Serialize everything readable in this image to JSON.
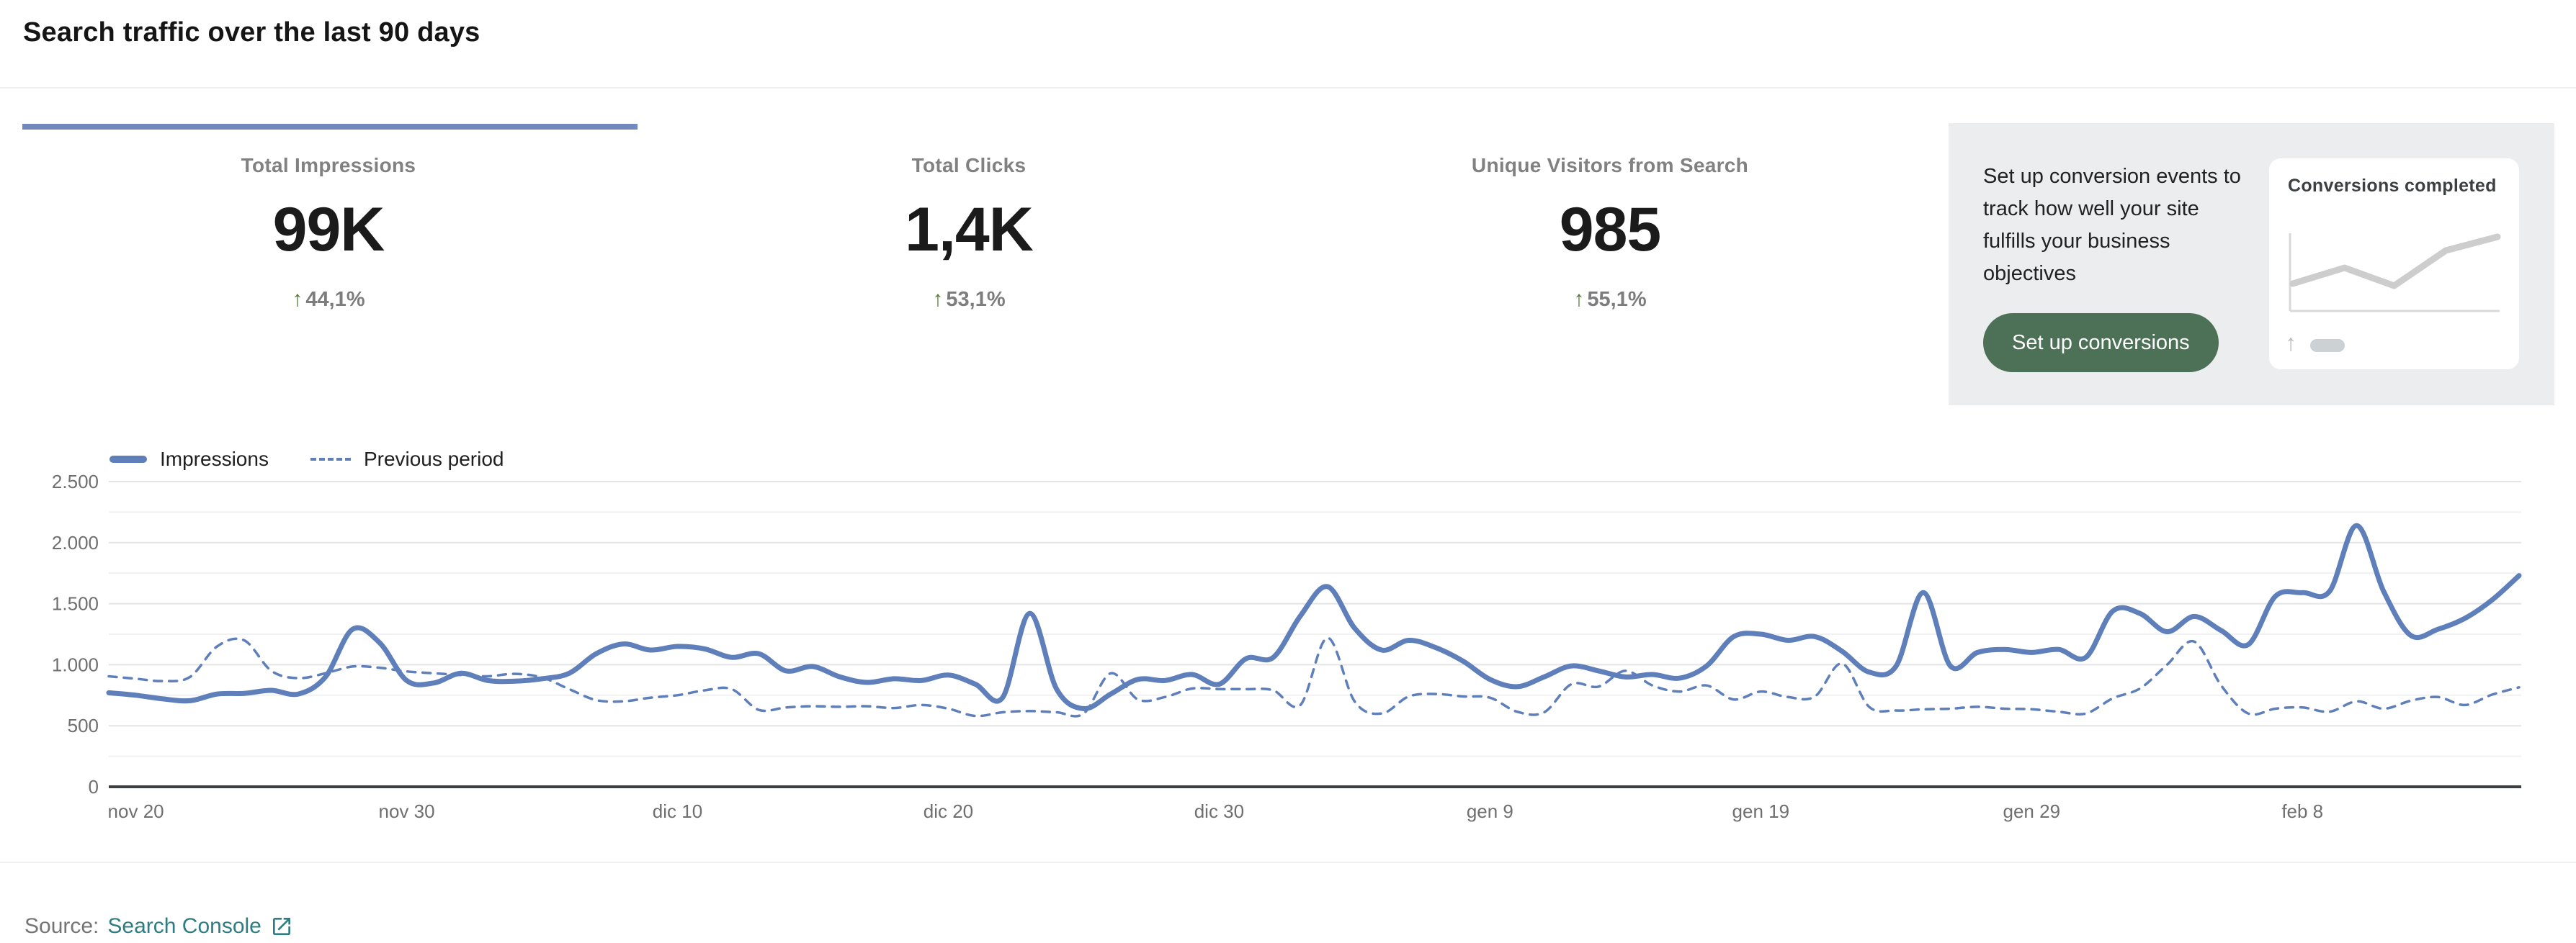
{
  "header": {
    "title": "Search traffic over the last 90 days"
  },
  "colors": {
    "accent_bar": "#7289bb",
    "line_blue": "#5e7fba",
    "delta_green": "#4e7d33",
    "panel_bg": "#ebedee",
    "button_green": "#4d7157",
    "link_teal": "#2e7e81",
    "grid_major": "#e4e4e4",
    "grid_minor": "#f1f1f1",
    "axis_dark": "#3b3e42",
    "mini_line_gray": "#cdcdcd"
  },
  "metrics": [
    {
      "label": "Total Impressions",
      "value": "99K",
      "arrow": "↑",
      "delta": "44,1%",
      "direction": "up"
    },
    {
      "label": "Total Clicks",
      "value": "1,4K",
      "arrow": "↑",
      "delta": "53,1%",
      "direction": "up"
    },
    {
      "label": "Unique Visitors from Search",
      "value": "985",
      "arrow": "↑",
      "delta": "55,1%",
      "direction": "up"
    }
  ],
  "promo": {
    "text": "Set up conversion events to track how well your site fulfills your business objectives",
    "button_label": "Set up conversions",
    "card_title": "Conversions completed",
    "placeholder_arrow": "↑",
    "mini_chart": {
      "points": [
        [
          0.01,
          0.7
        ],
        [
          0.26,
          0.48
        ],
        [
          0.5,
          0.73
        ],
        [
          0.75,
          0.24
        ],
        [
          1.0,
          0.05
        ]
      ]
    }
  },
  "chart_data": {
    "type": "line",
    "title": "Search traffic over the last 90 days",
    "xlabel": "",
    "ylabel": "",
    "ylim": [
      0,
      2500
    ],
    "grid": true,
    "grid_minor_step": 250,
    "grid_major_step": 500,
    "legend_position": "top-left",
    "y_ticks": [
      0,
      500,
      1000,
      1500,
      2000,
      2500
    ],
    "y_tick_labels": [
      "0",
      "500",
      "1.000",
      "1.500",
      "2.000",
      "2.500"
    ],
    "x_tick_labels": [
      "nov 20",
      "nov 30",
      "dic 10",
      "dic 20",
      "dic 30",
      "gen 9",
      "gen 19",
      "gen 29",
      "feb 8"
    ],
    "x_tick_indices": [
      1,
      11,
      21,
      31,
      41,
      51,
      61,
      71,
      81
    ],
    "legend": [
      {
        "name": "Impressions",
        "style": "solid"
      },
      {
        "name": "Previous period",
        "style": "dashed"
      }
    ],
    "series": [
      {
        "name": "Impressions",
        "values": [
          770,
          750,
          720,
          705,
          760,
          765,
          790,
          760,
          900,
          1290,
          1180,
          870,
          850,
          930,
          870,
          865,
          885,
          930,
          1090,
          1170,
          1120,
          1150,
          1130,
          1060,
          1090,
          950,
          985,
          900,
          855,
          885,
          870,
          915,
          840,
          730,
          1420,
          800,
          640,
          760,
          880,
          870,
          920,
          840,
          1050,
          1060,
          1400,
          1640,
          1300,
          1120,
          1200,
          1140,
          1030,
          880,
          820,
          900,
          990,
          950,
          900,
          920,
          890,
          990,
          1230,
          1250,
          1200,
          1230,
          1110,
          940,
          990,
          1590,
          990,
          1100,
          1125,
          1100,
          1125,
          1060,
          1440,
          1420,
          1270,
          1395,
          1280,
          1165,
          1560,
          1590,
          1600,
          2140,
          1600,
          1240,
          1290,
          1380,
          1530,
          1730
        ]
      },
      {
        "name": "Previous period",
        "values": [
          905,
          885,
          866,
          900,
          1150,
          1200,
          950,
          890,
          930,
          985,
          975,
          945,
          930,
          915,
          905,
          925,
          895,
          800,
          710,
          700,
          730,
          750,
          790,
          800,
          630,
          650,
          660,
          655,
          660,
          645,
          670,
          640,
          580,
          610,
          620,
          610,
          600,
          930,
          715,
          735,
          805,
          800,
          800,
          790,
          670,
          1220,
          700,
          600,
          740,
          760,
          740,
          730,
          615,
          610,
          840,
          820,
          950,
          830,
          780,
          830,
          715,
          780,
          735,
          740,
          1010,
          655,
          625,
          635,
          640,
          655,
          640,
          635,
          615,
          600,
          725,
          805,
          1000,
          1190,
          830,
          600,
          640,
          650,
          615,
          700,
          640,
          705,
          735,
          670,
          755,
          815
        ]
      }
    ]
  },
  "footer": {
    "source_label": "Source:",
    "link_label": "Search Console"
  }
}
